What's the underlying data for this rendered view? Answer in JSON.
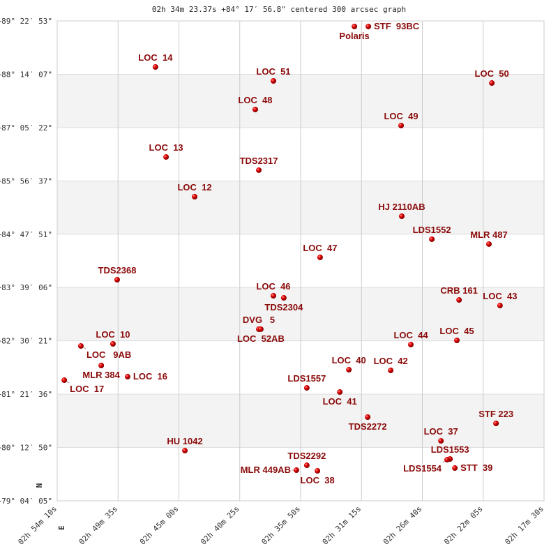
{
  "chart_data": {
    "type": "scatter",
    "title": "02h 34m 23.37s +84° 17′ 56.8\" centered 300 arcsec graph",
    "x_ticks": [
      "02h 54m 10s",
      "02h 49m 35s",
      "02h 45m 00s",
      "02h 40m 25s",
      "02h 35m 50s",
      "02h 31m 15s",
      "02h 26m 40s",
      "02h 22m 05s",
      "02h 17m 30s"
    ],
    "y_ticks": [
      "+79° 04′ 05\"",
      "+80° 12′ 50\"",
      "+81° 21′ 36\"",
      "+82° 30′ 21\"",
      "+83° 39′ 06\"",
      "+84° 47′ 51\"",
      "+85° 56′ 37\"",
      "+87° 05′ 22\"",
      "+88° 14′ 07\"",
      "+89° 22′ 53\""
    ],
    "xlim": [
      "02h 54m 10s",
      "02h 17m 30s"
    ],
    "ylim": [
      79.0681,
      89.3814
    ],
    "orientation": {
      "north": "N",
      "east": "E"
    },
    "banded_background": true,
    "grid": true,
    "point_color": "#d40000",
    "label_color": "#8b0a0a",
    "points": [
      {
        "name": "Polaris",
        "ra": "02h31m47s",
        "dec": 89.262
      },
      {
        "name": "STF  93BC",
        "ra": "02h30m44s",
        "dec": 89.262
      },
      {
        "name": "LOC  14",
        "ra": "02h46m46s",
        "dec": 88.392
      },
      {
        "name": "LOC  51",
        "ra": "02h37m53s",
        "dec": 88.092
      },
      {
        "name": "LOC  50",
        "ra": "02h21m26s",
        "dec": 88.047
      },
      {
        "name": "LOC  48",
        "ra": "02h39m15s",
        "dec": 87.478
      },
      {
        "name": "LOC  49",
        "ra": "02h28m16s",
        "dec": 87.133
      },
      {
        "name": "LOC  13",
        "ra": "02h45m58s",
        "dec": 86.458
      },
      {
        "name": "TDS2317",
        "ra": "02h38m59s",
        "dec": 86.174
      },
      {
        "name": "LOC  12",
        "ra": "02h43m49s",
        "dec": 85.604
      },
      {
        "name": "HJ 2110AB",
        "ra": "02h28m13s",
        "dec": 85.184
      },
      {
        "name": "LDS1552",
        "ra": "02h25m57s",
        "dec": 84.69
      },
      {
        "name": "MLR 487",
        "ra": "02h21m39s",
        "dec": 84.585
      },
      {
        "name": "LOC  47",
        "ra": "02h34m22s",
        "dec": 84.3
      },
      {
        "name": "TDS2368",
        "ra": "02h49m39s",
        "dec": 83.82
      },
      {
        "name": "LOC  46",
        "ra": "02h37m53s",
        "dec": 83.475
      },
      {
        "name": "TDS2304",
        "ra": "02h37m06s",
        "dec": 83.43
      },
      {
        "name": "CRB 161",
        "ra": "02h23m54s",
        "dec": 83.385
      },
      {
        "name": "LOC  43",
        "ra": "02h20m49s",
        "dec": 83.265
      },
      {
        "name": "DVG   5",
        "ra": "02h38m59s",
        "dec": 82.756
      },
      {
        "name": "LOC  52AB",
        "ra": "02h38m50s",
        "dec": 82.756
      },
      {
        "name": "LOC   9AB",
        "ra": "02h52m23s",
        "dec": 82.396
      },
      {
        "name": "LOC  10",
        "ra": "02h49m58s",
        "dec": 82.441
      },
      {
        "name": "LOC  44",
        "ra": "02h27m32s",
        "dec": 82.426
      },
      {
        "name": "LOC  45",
        "ra": "02h24m04s",
        "dec": 82.516
      },
      {
        "name": "MLR 384",
        "ra": "02h50m51s",
        "dec": 81.976
      },
      {
        "name": "LOC  16",
        "ra": "02h48m52s",
        "dec": 81.736
      },
      {
        "name": "LOC  17",
        "ra": "02h53m38s",
        "dec": 81.661
      },
      {
        "name": "LOC  40",
        "ra": "02h32m12s",
        "dec": 81.886
      },
      {
        "name": "LOC  42",
        "ra": "02h29m03s",
        "dec": 81.871
      },
      {
        "name": "LDS1557",
        "ra": "02h35m22s",
        "dec": 81.496
      },
      {
        "name": "LOC  41",
        "ra": "02h32m53s",
        "dec": 81.406
      },
      {
        "name": "TDS2272",
        "ra": "02h30m47s",
        "dec": 80.867
      },
      {
        "name": "STF 223",
        "ra": "02h21m07s",
        "dec": 80.732
      },
      {
        "name": "LOC  37",
        "ra": "02h25m16s",
        "dec": 80.357
      },
      {
        "name": "HU 1042",
        "ra": "02h44m33s",
        "dec": 80.147
      },
      {
        "name": "LDS1553",
        "ra": "02h24m35s",
        "dec": 79.967
      },
      {
        "name": "LDS1554",
        "ra": "02h24m48s",
        "dec": 79.952
      },
      {
        "name": "STT  39",
        "ra": "02h24m13s",
        "dec": 79.772
      },
      {
        "name": "MLR 449AB",
        "ra": "02h36m09s",
        "dec": 79.727
      },
      {
        "name": "TDS2292",
        "ra": "02h35m22s",
        "dec": 79.832
      },
      {
        "name": "LOC  38",
        "ra": "02h34m34s",
        "dec": 79.712
      }
    ]
  }
}
